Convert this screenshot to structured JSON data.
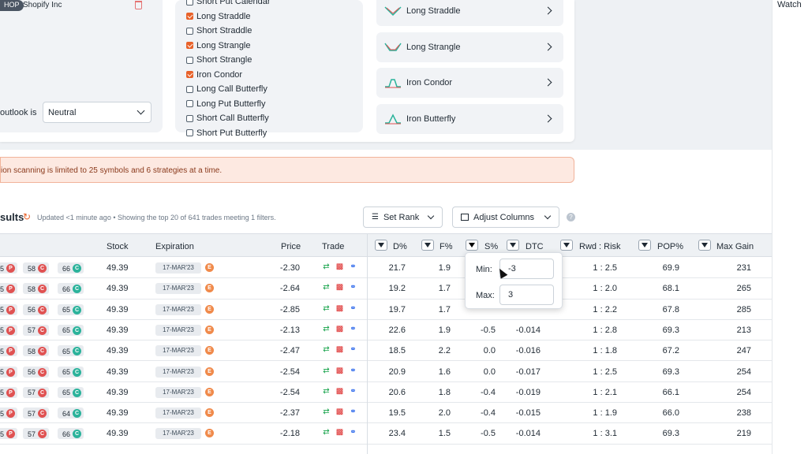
{
  "watchlist": {
    "symbol_badge": "HOP",
    "symbol_name": "Shopify Inc",
    "outlook_label": "outlook is",
    "outlook_value": "Neutral"
  },
  "strategies": [
    {
      "label": "Short Put Calendar",
      "checked": false
    },
    {
      "label": "Long Straddle",
      "checked": true
    },
    {
      "label": "Short Straddle",
      "checked": false
    },
    {
      "label": "Long Strangle",
      "checked": true
    },
    {
      "label": "Short Strangle",
      "checked": false
    },
    {
      "label": "Iron Condor",
      "checked": true
    },
    {
      "label": "Long Call Butterfly",
      "checked": false
    },
    {
      "label": "Long Put Butterfly",
      "checked": false
    },
    {
      "label": "Short Call Butterfly",
      "checked": false
    },
    {
      "label": "Short Put Butterfly",
      "checked": false
    }
  ],
  "strategy_buttons": [
    "Long Straddle",
    "Long Strangle",
    "Iron Condor",
    "Iron Butterfly"
  ],
  "right_panel": {
    "title": "Watch"
  },
  "alert": "ion scanning is limited to 25 symbols and 6 strategies at a time.",
  "results": {
    "title": "sults",
    "updated": "Updated <1 minute ago • Showing the top 20 of 641 trades meeting 1 filters.",
    "set_rank": "Set Rank",
    "adjust_columns": "Adjust Columns",
    "help": "?"
  },
  "columns": [
    "Stock",
    "Expiration",
    "Price",
    "Trade",
    "D%",
    "F%",
    "S%",
    "DTC",
    "Rwd : Risk",
    "POP%",
    "Max Gain"
  ],
  "filter": {
    "min_label": "Min:",
    "min_value": "-3",
    "max_label": "Max:",
    "max_value": "3"
  },
  "rows": [
    {
      "l1": "5",
      "l2": "58",
      "l3": "66",
      "stock": "49.39",
      "exp": "17-MAR'23",
      "price": "-2.30",
      "d": "21.7",
      "f": "1.9",
      "s": "",
      "dtc": "",
      "rr": "1 : 2.5",
      "pop": "69.9",
      "mg": "231"
    },
    {
      "l1": "5",
      "l2": "58",
      "l3": "66",
      "stock": "49.39",
      "exp": "17-MAR'23",
      "price": "-2.64",
      "d": "19.2",
      "f": "1.7",
      "s": "",
      "dtc": "",
      "rr": "1 : 2.0",
      "pop": "68.1",
      "mg": "265"
    },
    {
      "l1": "5",
      "l2": "56",
      "l3": "65",
      "stock": "49.39",
      "exp": "17-MAR'23",
      "price": "-2.85",
      "d": "19.7",
      "f": "1.7",
      "s": "",
      "dtc": "",
      "rr": "1 : 2.2",
      "pop": "67.8",
      "mg": "285"
    },
    {
      "l1": "5",
      "l2": "57",
      "l3": "65",
      "stock": "49.39",
      "exp": "17-MAR'23",
      "price": "-2.13",
      "d": "22.6",
      "f": "1.9",
      "s": "-0.5",
      "dtc": "-0.014",
      "rr": "1 : 2.8",
      "pop": "69.3",
      "mg": "213"
    },
    {
      "l1": "5",
      "l2": "58",
      "l3": "65",
      "stock": "49.39",
      "exp": "17-MAR'23",
      "price": "-2.47",
      "d": "18.5",
      "f": "2.2",
      "s": "0.0",
      "dtc": "-0.016",
      "rr": "1 : 1.8",
      "pop": "67.2",
      "mg": "247"
    },
    {
      "l1": "5",
      "l2": "56",
      "l3": "65",
      "stock": "49.39",
      "exp": "17-MAR'23",
      "price": "-2.54",
      "d": "20.9",
      "f": "1.6",
      "s": "0.0",
      "dtc": "-0.017",
      "rr": "1 : 2.5",
      "pop": "69.3",
      "mg": "254"
    },
    {
      "l1": "5",
      "l2": "57",
      "l3": "65",
      "stock": "49.39",
      "exp": "17-MAR'23",
      "price": "-2.54",
      "d": "20.6",
      "f": "1.8",
      "s": "-0.4",
      "dtc": "-0.019",
      "rr": "1 : 2.1",
      "pop": "66.1",
      "mg": "254"
    },
    {
      "l1": "5",
      "l2": "57",
      "l3": "64",
      "stock": "49.39",
      "exp": "17-MAR'23",
      "price": "-2.37",
      "d": "19.5",
      "f": "2.0",
      "s": "-0.4",
      "dtc": "-0.015",
      "rr": "1 : 1.9",
      "pop": "66.0",
      "mg": "238"
    },
    {
      "l1": "5",
      "l2": "57",
      "l3": "66",
      "stock": "49.39",
      "exp": "17-MAR'23",
      "price": "-2.18",
      "d": "23.4",
      "f": "1.5",
      "s": "-0.5",
      "dtc": "-0.014",
      "rr": "1 : 3.1",
      "pop": "69.3",
      "mg": "219"
    }
  ]
}
